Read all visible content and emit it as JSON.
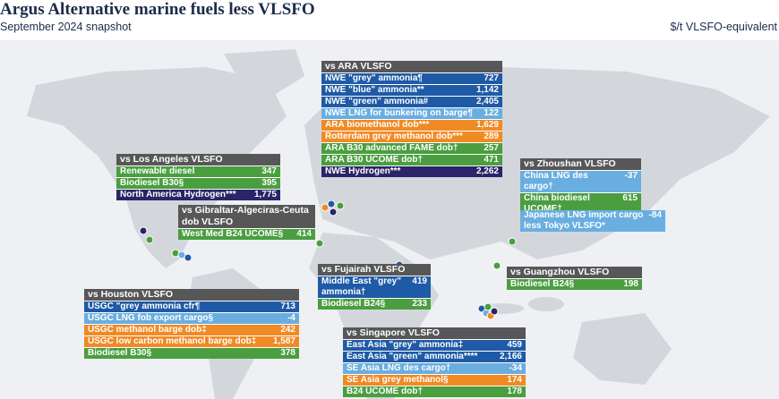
{
  "header": {
    "title": "Argus Alternative marine fuels less VLSFO",
    "subtitle": "September 2024 snapshot",
    "unit": "$/t VLSFO-equivalent"
  },
  "panels": [
    {
      "heading": "vs ARA VLSFO",
      "rows": [
        {
          "label": "NWE \"grey\" ammonia¶",
          "value": "727",
          "color": "#1f5aa6"
        },
        {
          "label": "NWE \"blue\" ammonia**",
          "value": "1,142",
          "color": "#1f5aa6"
        },
        {
          "label": "NWE \"green\" ammonia#",
          "value": "2,405",
          "color": "#1f5aa6"
        },
        {
          "label": "NWE LNG for bunkering on barge¶",
          "value": "122",
          "color": "#6aaee0"
        },
        {
          "label": "ARA biomethanol dob***",
          "value": "1,629",
          "color": "#f08a24"
        },
        {
          "label": "Rotterdam grey methanol dob***",
          "value": "289",
          "color": "#f08a24"
        },
        {
          "label": "ARA B30 advanced FAME dob†",
          "value": "257",
          "color": "#4a9e3f"
        },
        {
          "label": "ARA B30 UCOME dob†",
          "value": "471",
          "color": "#4a9e3f"
        },
        {
          "label": "NWE Hydrogen***",
          "value": "2,262",
          "color": "#2b2468"
        }
      ]
    },
    {
      "heading": "vs Los Angeles VLSFO",
      "rows": [
        {
          "label": "Renewable diesel",
          "value": "347",
          "color": "#4a9e3f"
        },
        {
          "label": "Biodiesel B30§",
          "value": "395",
          "color": "#4a9e3f"
        },
        {
          "label": "North America Hydrogen***",
          "value": "1,775",
          "color": "#2b2468"
        }
      ]
    },
    {
      "heading": "vs Gibraltar-Algeciras-Ceuta dob VLSFO",
      "rows": [
        {
          "label": "West Med B24 UCOME§",
          "value": "414",
          "color": "#4a9e3f"
        }
      ]
    },
    {
      "heading": "vs Zhoushan VLSFO",
      "rows": [
        {
          "label": "China LNG des cargo†",
          "value": "-37",
          "color": "#6aaee0"
        },
        {
          "label": "China biodiesel UCOME†",
          "value": "615",
          "color": "#4a9e3f"
        }
      ]
    },
    {
      "rows": [
        {
          "label": "Japanese LNG import cargo less Tokyo VLSFO*",
          "value": "-84",
          "color": "#6aaee0"
        }
      ]
    },
    {
      "heading": "vs Guangzhou VLSFO",
      "rows": [
        {
          "label": "Biodiesel B24§",
          "value": "198",
          "color": "#4a9e3f"
        }
      ]
    },
    {
      "heading": "vs Fujairah VLSFO",
      "rows": [
        {
          "label": "Middle East \"grey\" ammonia†",
          "value": "419",
          "color": "#1f5aa6"
        },
        {
          "label": "Biodiesel B24§",
          "value": "233",
          "color": "#4a9e3f"
        }
      ]
    },
    {
      "heading": "vs Houston VLSFO",
      "rows": [
        {
          "label": "USGC \"grey ammonia cfr¶",
          "value": "713",
          "color": "#1f5aa6"
        },
        {
          "label": "USGC LNG fob export cargo§",
          "value": "-4",
          "color": "#6aaee0"
        },
        {
          "label": "USGC methanol barge dob‡",
          "value": "242",
          "color": "#f08a24"
        },
        {
          "label": "USGC low carbon methanol barge dob‡",
          "value": "1,587",
          "color": "#f08a24"
        },
        {
          "label": "Biodiesel B30§",
          "value": "378",
          "color": "#4a9e3f"
        }
      ]
    },
    {
      "heading": "vs Singapore VLSFO",
      "rows": [
        {
          "label": "East Asia \"grey\" ammonia‡",
          "value": "459",
          "color": "#1f5aa6"
        },
        {
          "label": "East Asia \"green\" ammonia****",
          "value": "2,166",
          "color": "#1f5aa6"
        },
        {
          "label": "SE Asia LNG des cargo†",
          "value": "-34",
          "color": "#6aaee0"
        },
        {
          "label": "SE Asia grey methanol§",
          "value": "174",
          "color": "#f08a24"
        },
        {
          "label": "B24 UCOME dob†",
          "value": "178",
          "color": "#4a9e3f"
        }
      ]
    }
  ]
}
